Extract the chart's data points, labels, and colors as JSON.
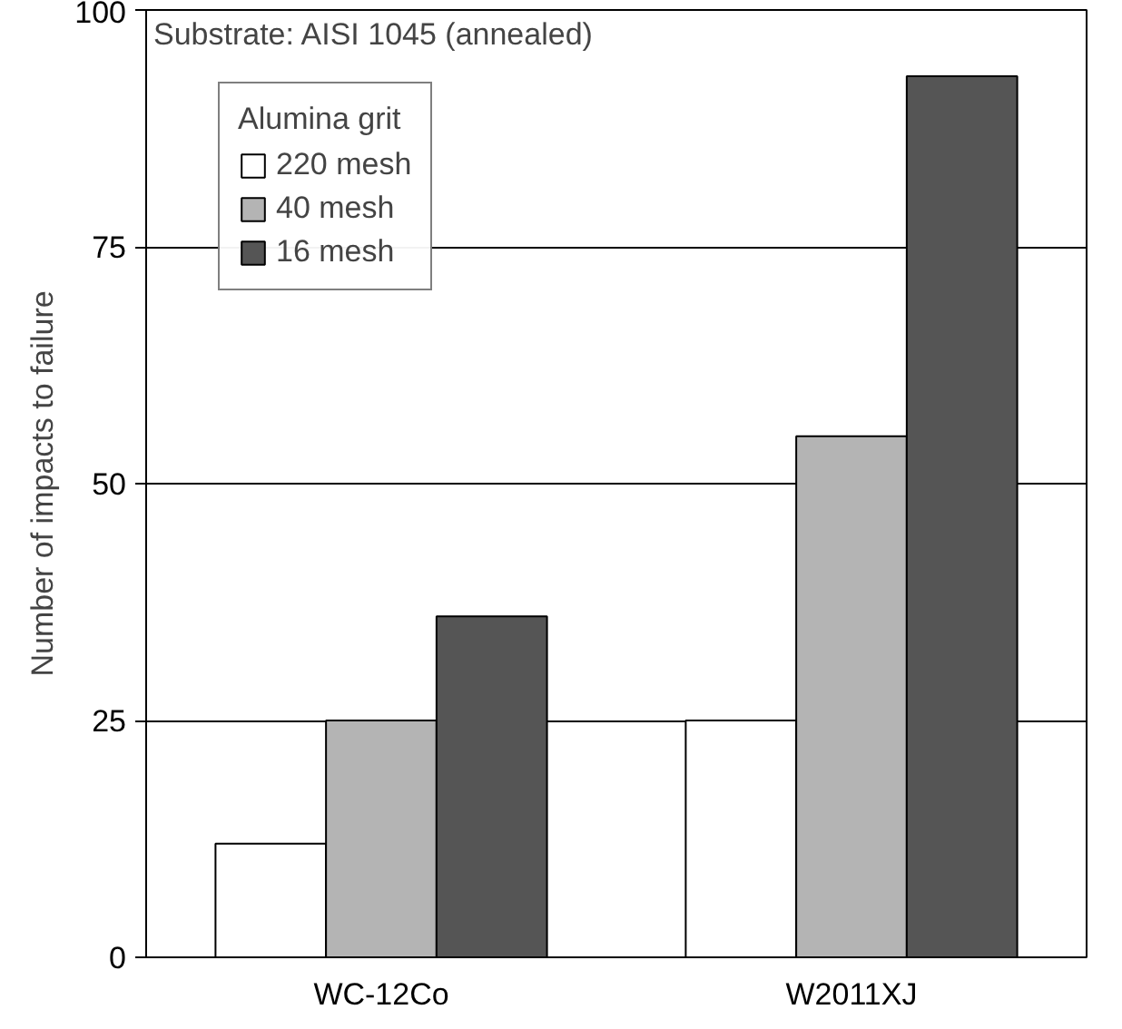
{
  "chart_data": {
    "type": "bar",
    "ylabel": "Number of impacts to failure",
    "categories": [
      "WC-12Co",
      "W2011XJ"
    ],
    "series": [
      {
        "name": "220 mesh",
        "color": "#ffffff",
        "values": [
          12,
          25
        ]
      },
      {
        "name": "40 mesh",
        "color": "#b4b4b4",
        "values": [
          25,
          55
        ]
      },
      {
        "name": "16 mesh",
        "color": "#555555",
        "values": [
          36,
          93
        ]
      }
    ],
    "ylim": [
      0,
      100
    ],
    "yticks": [
      0,
      25,
      50,
      75,
      100
    ],
    "grid": "y",
    "legend": "top left",
    "legend_title": "Alumina grit",
    "annotations": [
      "Substrate: AISI 1045 (annealed)"
    ]
  }
}
